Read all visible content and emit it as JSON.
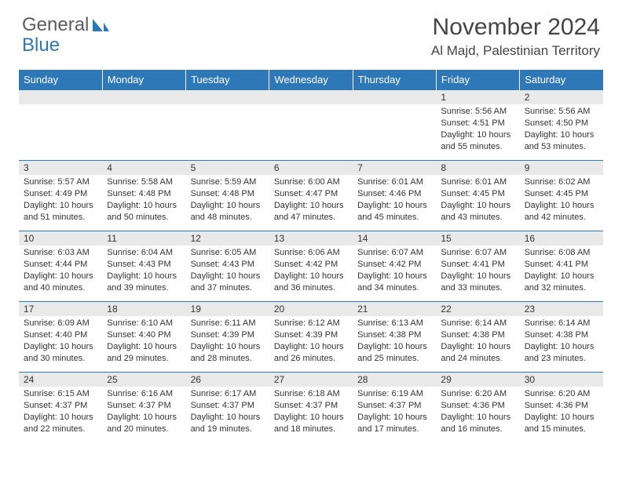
{
  "logo": {
    "word1": "General",
    "word2": "Blue"
  },
  "title": "November 2024",
  "location": "Al Majd, Palestinian Territory",
  "weekdays": [
    "Sunday",
    "Monday",
    "Tuesday",
    "Wednesday",
    "Thursday",
    "Friday",
    "Saturday"
  ],
  "colors": {
    "header_bg": "#2f78b7",
    "header_text": "#ffffff",
    "daynum_bg": "#e9e9e9",
    "text": "#333333",
    "rule": "#2f78b7"
  },
  "weeks": [
    [
      {
        "day": "",
        "lines": []
      },
      {
        "day": "",
        "lines": []
      },
      {
        "day": "",
        "lines": []
      },
      {
        "day": "",
        "lines": []
      },
      {
        "day": "",
        "lines": []
      },
      {
        "day": "1",
        "lines": [
          "Sunrise: 5:56 AM",
          "Sunset: 4:51 PM",
          "Daylight: 10 hours and 55 minutes."
        ]
      },
      {
        "day": "2",
        "lines": [
          "Sunrise: 5:56 AM",
          "Sunset: 4:50 PM",
          "Daylight: 10 hours and 53 minutes."
        ]
      }
    ],
    [
      {
        "day": "3",
        "lines": [
          "Sunrise: 5:57 AM",
          "Sunset: 4:49 PM",
          "Daylight: 10 hours and 51 minutes."
        ]
      },
      {
        "day": "4",
        "lines": [
          "Sunrise: 5:58 AM",
          "Sunset: 4:48 PM",
          "Daylight: 10 hours and 50 minutes."
        ]
      },
      {
        "day": "5",
        "lines": [
          "Sunrise: 5:59 AM",
          "Sunset: 4:48 PM",
          "Daylight: 10 hours and 48 minutes."
        ]
      },
      {
        "day": "6",
        "lines": [
          "Sunrise: 6:00 AM",
          "Sunset: 4:47 PM",
          "Daylight: 10 hours and 47 minutes."
        ]
      },
      {
        "day": "7",
        "lines": [
          "Sunrise: 6:01 AM",
          "Sunset: 4:46 PM",
          "Daylight: 10 hours and 45 minutes."
        ]
      },
      {
        "day": "8",
        "lines": [
          "Sunrise: 6:01 AM",
          "Sunset: 4:45 PM",
          "Daylight: 10 hours and 43 minutes."
        ]
      },
      {
        "day": "9",
        "lines": [
          "Sunrise: 6:02 AM",
          "Sunset: 4:45 PM",
          "Daylight: 10 hours and 42 minutes."
        ]
      }
    ],
    [
      {
        "day": "10",
        "lines": [
          "Sunrise: 6:03 AM",
          "Sunset: 4:44 PM",
          "Daylight: 10 hours and 40 minutes."
        ]
      },
      {
        "day": "11",
        "lines": [
          "Sunrise: 6:04 AM",
          "Sunset: 4:43 PM",
          "Daylight: 10 hours and 39 minutes."
        ]
      },
      {
        "day": "12",
        "lines": [
          "Sunrise: 6:05 AM",
          "Sunset: 4:43 PM",
          "Daylight: 10 hours and 37 minutes."
        ]
      },
      {
        "day": "13",
        "lines": [
          "Sunrise: 6:06 AM",
          "Sunset: 4:42 PM",
          "Daylight: 10 hours and 36 minutes."
        ]
      },
      {
        "day": "14",
        "lines": [
          "Sunrise: 6:07 AM",
          "Sunset: 4:42 PM",
          "Daylight: 10 hours and 34 minutes."
        ]
      },
      {
        "day": "15",
        "lines": [
          "Sunrise: 6:07 AM",
          "Sunset: 4:41 PM",
          "Daylight: 10 hours and 33 minutes."
        ]
      },
      {
        "day": "16",
        "lines": [
          "Sunrise: 6:08 AM",
          "Sunset: 4:41 PM",
          "Daylight: 10 hours and 32 minutes."
        ]
      }
    ],
    [
      {
        "day": "17",
        "lines": [
          "Sunrise: 6:09 AM",
          "Sunset: 4:40 PM",
          "Daylight: 10 hours and 30 minutes."
        ]
      },
      {
        "day": "18",
        "lines": [
          "Sunrise: 6:10 AM",
          "Sunset: 4:40 PM",
          "Daylight: 10 hours and 29 minutes."
        ]
      },
      {
        "day": "19",
        "lines": [
          "Sunrise: 6:11 AM",
          "Sunset: 4:39 PM",
          "Daylight: 10 hours and 28 minutes."
        ]
      },
      {
        "day": "20",
        "lines": [
          "Sunrise: 6:12 AM",
          "Sunset: 4:39 PM",
          "Daylight: 10 hours and 26 minutes."
        ]
      },
      {
        "day": "21",
        "lines": [
          "Sunrise: 6:13 AM",
          "Sunset: 4:38 PM",
          "Daylight: 10 hours and 25 minutes."
        ]
      },
      {
        "day": "22",
        "lines": [
          "Sunrise: 6:14 AM",
          "Sunset: 4:38 PM",
          "Daylight: 10 hours and 24 minutes."
        ]
      },
      {
        "day": "23",
        "lines": [
          "Sunrise: 6:14 AM",
          "Sunset: 4:38 PM",
          "Daylight: 10 hours and 23 minutes."
        ]
      }
    ],
    [
      {
        "day": "24",
        "lines": [
          "Sunrise: 6:15 AM",
          "Sunset: 4:37 PM",
          "Daylight: 10 hours and 22 minutes."
        ]
      },
      {
        "day": "25",
        "lines": [
          "Sunrise: 6:16 AM",
          "Sunset: 4:37 PM",
          "Daylight: 10 hours and 20 minutes."
        ]
      },
      {
        "day": "26",
        "lines": [
          "Sunrise: 6:17 AM",
          "Sunset: 4:37 PM",
          "Daylight: 10 hours and 19 minutes."
        ]
      },
      {
        "day": "27",
        "lines": [
          "Sunrise: 6:18 AM",
          "Sunset: 4:37 PM",
          "Daylight: 10 hours and 18 minutes."
        ]
      },
      {
        "day": "28",
        "lines": [
          "Sunrise: 6:19 AM",
          "Sunset: 4:37 PM",
          "Daylight: 10 hours and 17 minutes."
        ]
      },
      {
        "day": "29",
        "lines": [
          "Sunrise: 6:20 AM",
          "Sunset: 4:36 PM",
          "Daylight: 10 hours and 16 minutes."
        ]
      },
      {
        "day": "30",
        "lines": [
          "Sunrise: 6:20 AM",
          "Sunset: 4:36 PM",
          "Daylight: 10 hours and 15 minutes."
        ]
      }
    ]
  ]
}
